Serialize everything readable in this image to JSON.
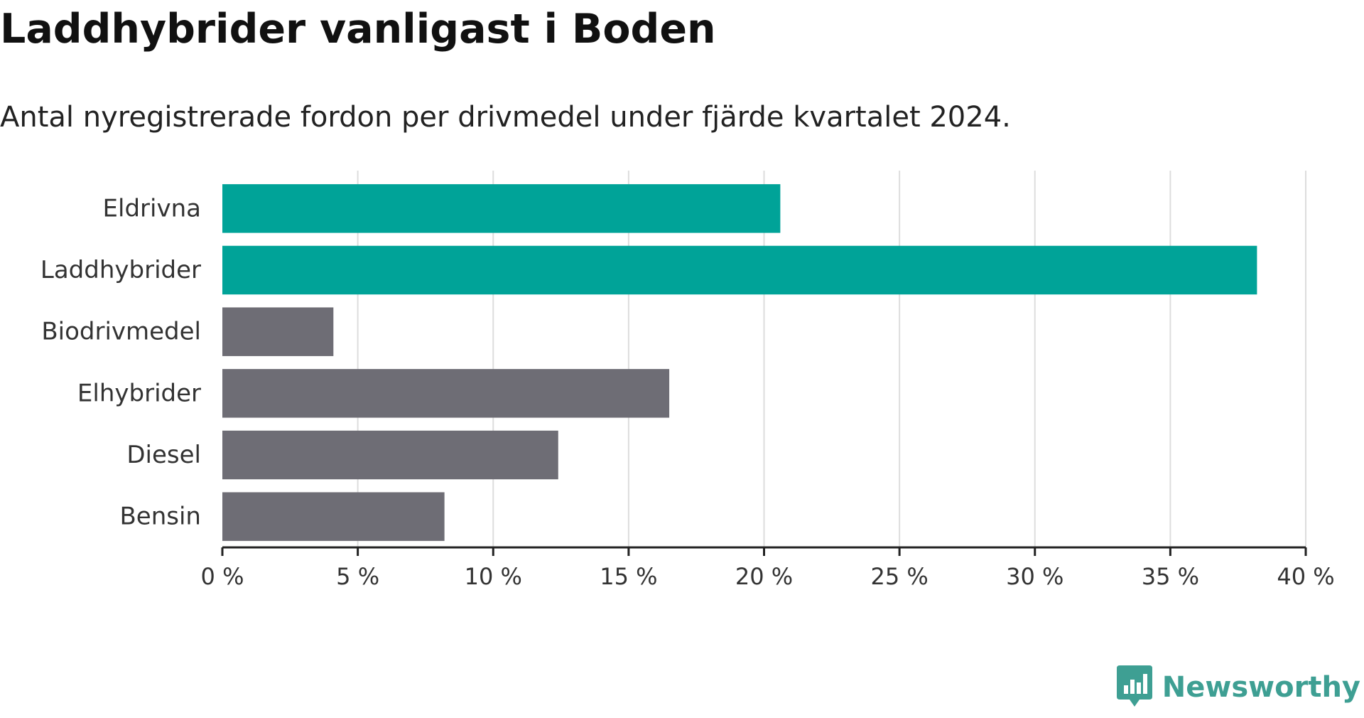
{
  "title": "Laddhybrider vanligast i Boden",
  "subtitle": "Antal nyregistrerade fordon per drivmedel under fjärde kvartalet 2024.",
  "brand": {
    "name": "Newsworthy",
    "icon": "newsworthy-logo-icon",
    "color": "#3e9f93"
  },
  "chart_data": {
    "type": "bar",
    "orientation": "horizontal",
    "categories": [
      "Eldrivna",
      "Laddhybrider",
      "Biodrivmedel",
      "Elhybrider",
      "Diesel",
      "Bensin"
    ],
    "values": [
      20.6,
      38.2,
      4.1,
      16.5,
      12.4,
      8.2
    ],
    "highlight": [
      true,
      true,
      false,
      false,
      false,
      false
    ],
    "colors": {
      "highlight": "#00a398",
      "default": "#6e6d75",
      "grid": "#dddddd",
      "axis": "#222222"
    },
    "xlim": [
      0,
      40
    ],
    "xticks": [
      0,
      5,
      10,
      15,
      20,
      25,
      30,
      35,
      40
    ],
    "xtick_labels": [
      "0 %",
      "5 %",
      "10 %",
      "15 %",
      "20 %",
      "25 %",
      "30 %",
      "35 %",
      "40 %"
    ],
    "grid": true
  }
}
